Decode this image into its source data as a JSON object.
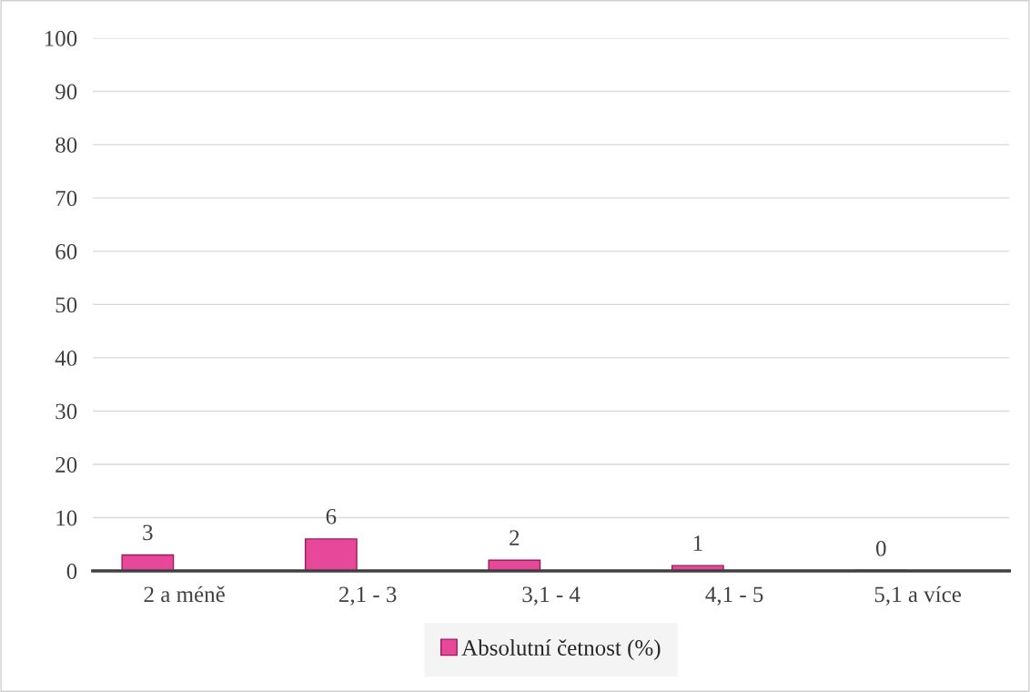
{
  "chart_data": {
    "type": "bar",
    "categories": [
      "2 a méně",
      "2,1 - 3",
      "3,1 - 4",
      "4,1 - 5",
      "5,1 a více"
    ],
    "series": [
      {
        "name": "Absolutní četnost (%)",
        "color": "#e8489a",
        "values": [
          3,
          6,
          2,
          1,
          0
        ]
      }
    ],
    "ylim": [
      0,
      100
    ],
    "yticks": [
      0,
      10,
      20,
      30,
      40,
      50,
      60,
      70,
      80,
      90,
      100
    ],
    "grid": "y",
    "legend": "bottom",
    "data_labels": true
  }
}
